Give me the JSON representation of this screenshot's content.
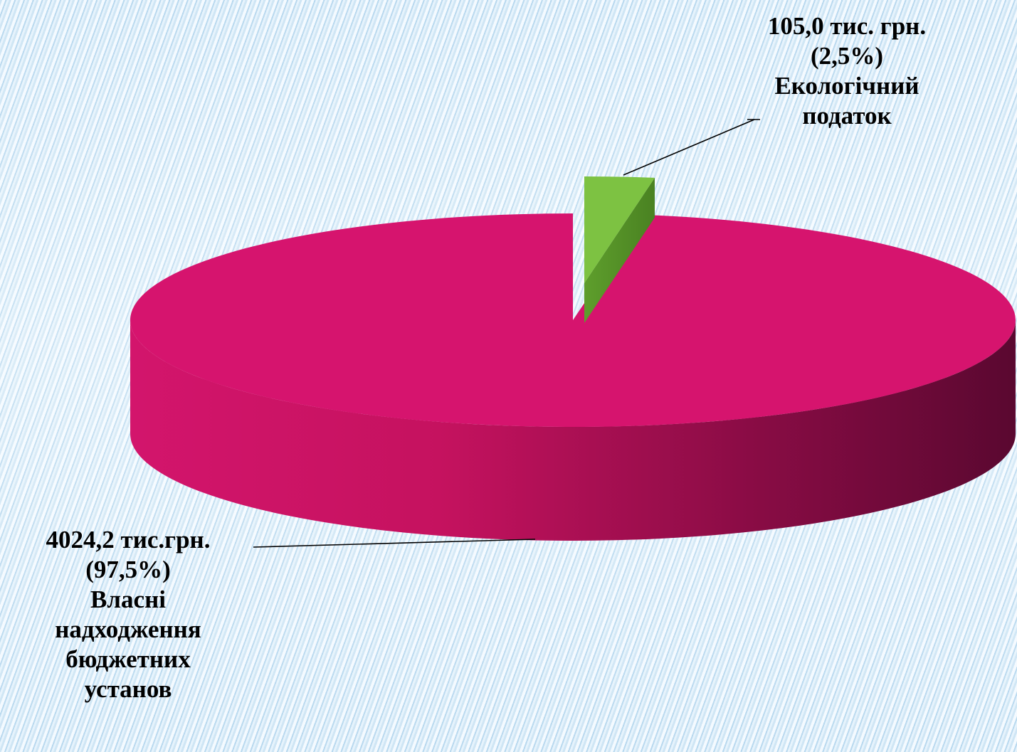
{
  "chart_data": {
    "type": "pie",
    "title": "",
    "unit": "тис. грн.",
    "slices": [
      {
        "name": "Власні надходження бюджетних установ",
        "value": 4024.2,
        "percent": 97.5,
        "color": "#d6146e",
        "label_lines": [
          "4024,2  тис.грн.",
          "(97,5%)",
          "Власні",
          "надходження",
          "бюджетних",
          "установ"
        ]
      },
      {
        "name": "Екологічний податок",
        "value": 105.0,
        "percent": 2.5,
        "color": "#7dc242",
        "label_lines": [
          "105,0 тис. грн.",
          "(2,5%)",
          "Екологічний",
          "податок"
        ]
      }
    ]
  }
}
